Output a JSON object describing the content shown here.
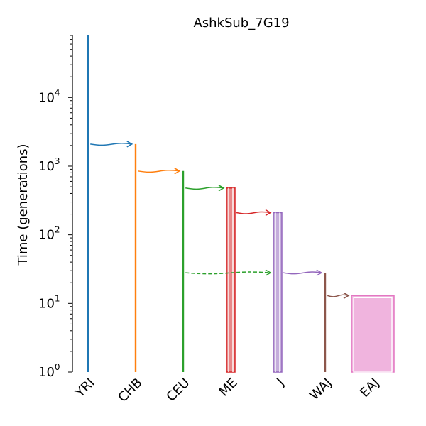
{
  "title": "AshkSub_7G19",
  "y_label": "Time (generations)",
  "y_scale": "log",
  "y_range": [
    1,
    80000
  ],
  "y_ticks": [
    {
      "base": "10",
      "exp": "0"
    },
    {
      "base": "10",
      "exp": "1"
    },
    {
      "base": "10",
      "exp": "2"
    },
    {
      "base": "10",
      "exp": "3"
    },
    {
      "base": "10",
      "exp": "4"
    }
  ],
  "demes": [
    {
      "name": "YRI",
      "color": "#1f77b4",
      "start_time": 80000,
      "end_time": 1,
      "size_style": "line"
    },
    {
      "name": "CHB",
      "color": "#ff7f0e",
      "start_time": 2100,
      "end_time": 1,
      "size_style": "line"
    },
    {
      "name": "CEU",
      "color": "#2ca02c",
      "start_time": 850,
      "end_time": 1,
      "size_style": "line"
    },
    {
      "name": "ME",
      "color": "#d62728",
      "start_time": 480,
      "end_time": 1,
      "size_style": "box"
    },
    {
      "name": "J",
      "color": "#9467bd",
      "start_time": 210,
      "end_time": 1,
      "size_style": "box"
    },
    {
      "name": "WAJ",
      "color": "#8c564b",
      "start_time": 28,
      "end_time": 1,
      "size_style": "line"
    },
    {
      "name": "EAJ",
      "color": "#e377c2",
      "start_time": 13,
      "end_time": 1,
      "size_style": "wide-box"
    }
  ],
  "branches": [
    {
      "from": "YRI",
      "to": "CHB",
      "time": 2100,
      "color": "#1f77b4",
      "style": "solid"
    },
    {
      "from": "CHB",
      "to": "CEU",
      "time": 850,
      "color": "#ff7f0e",
      "style": "solid"
    },
    {
      "from": "CEU",
      "to": "ME",
      "time": 480,
      "color": "#2ca02c",
      "style": "solid"
    },
    {
      "from": "ME",
      "to": "J",
      "time": 210,
      "color": "#d62728",
      "style": "solid"
    },
    {
      "from": "CEU",
      "to": "J",
      "time": 28,
      "color": "#2ca02c",
      "style": "dashed"
    },
    {
      "from": "J",
      "to": "WAJ",
      "time": 28,
      "color": "#9467bd",
      "style": "solid"
    },
    {
      "from": "WAJ",
      "to": "EAJ",
      "time": 13,
      "color": "#8c564b",
      "style": "solid"
    }
  ]
}
